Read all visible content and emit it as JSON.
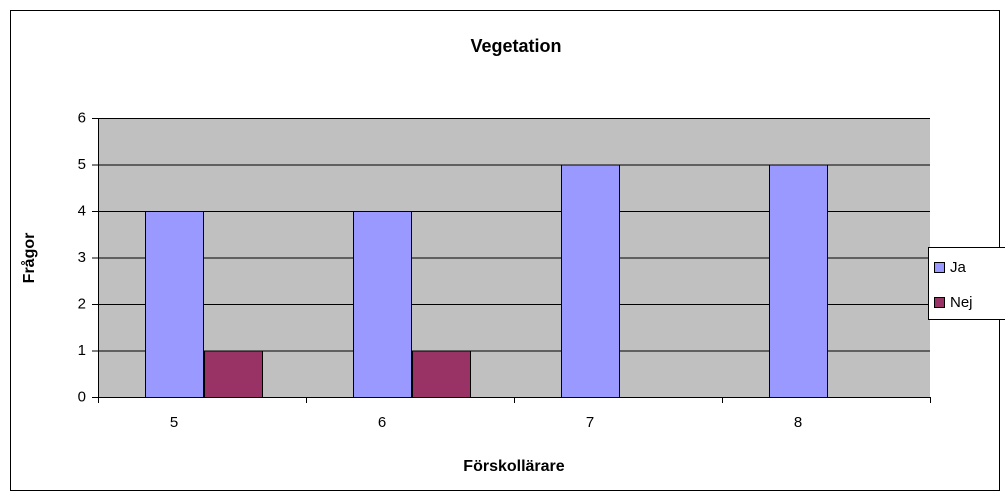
{
  "chart_data": {
    "type": "bar",
    "title": "Vegetation",
    "x_label": "Förskollärare",
    "y_label": "Frågor",
    "categories": [
      "5",
      "6",
      "7",
      "8"
    ],
    "series": [
      {
        "name": "Ja",
        "color": "#9999ff",
        "values": [
          4,
          4,
          5,
          5
        ]
      },
      {
        "name": "Nej",
        "color": "#993366",
        "values": [
          1,
          1,
          0,
          0
        ]
      }
    ],
    "ylim": [
      0,
      6
    ],
    "yticks": [
      0,
      1,
      2,
      3,
      4,
      5,
      6
    ],
    "grid": true,
    "legend": "right"
  }
}
